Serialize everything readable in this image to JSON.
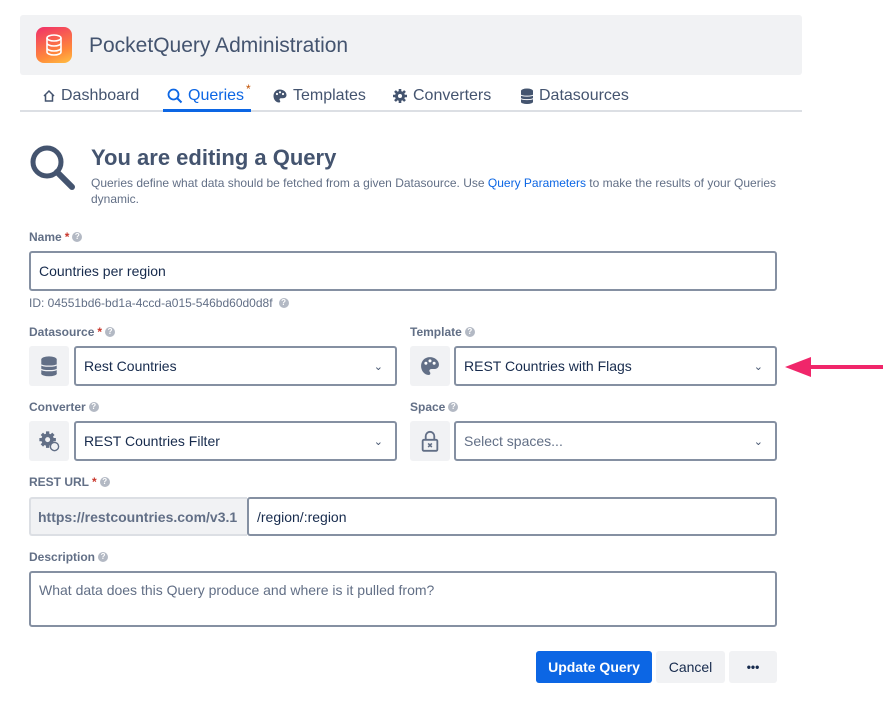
{
  "app": {
    "title": "PocketQuery Administration"
  },
  "nav": {
    "tabs": [
      {
        "label": "Dashboard",
        "icon": "home-icon"
      },
      {
        "label": "Queries",
        "icon": "search-icon",
        "active": true,
        "modified_marker": "*"
      },
      {
        "label": "Templates",
        "icon": "palette-icon"
      },
      {
        "label": "Converters",
        "icon": "gear-icon"
      },
      {
        "label": "Datasources",
        "icon": "database-icon"
      }
    ]
  },
  "page": {
    "title": "You are editing a Query",
    "description_before": "Queries define what data should be fetched from a given Datasource. Use ",
    "description_link": "Query Parameters",
    "description_after": " to make the results of your Queries dynamic."
  },
  "form": {
    "name": {
      "label": "Name",
      "required": "*",
      "value": "Countries per region",
      "id_text": "ID: 04551bd6-bd1a-4ccd-a015-546bd60d0d8f"
    },
    "datasource": {
      "label": "Datasource",
      "required": "*",
      "value": "Rest Countries"
    },
    "template": {
      "label": "Template",
      "value": "REST Countries with Flags"
    },
    "converter": {
      "label": "Converter",
      "value": "REST Countries Filter"
    },
    "space": {
      "label": "Space",
      "placeholder": "Select spaces..."
    },
    "rest_url": {
      "label": "REST URL",
      "required": "*",
      "prefix": "https://restcountries.com/v3.1",
      "value": "/region/:region"
    },
    "description": {
      "label": "Description",
      "placeholder": "What data does this Query produce and where is it pulled from?"
    }
  },
  "actions": {
    "update": "Update Query",
    "cancel": "Cancel",
    "more": "•••"
  },
  "colors": {
    "primary": "#0c66e4",
    "annotation_arrow": "#f0266a"
  }
}
